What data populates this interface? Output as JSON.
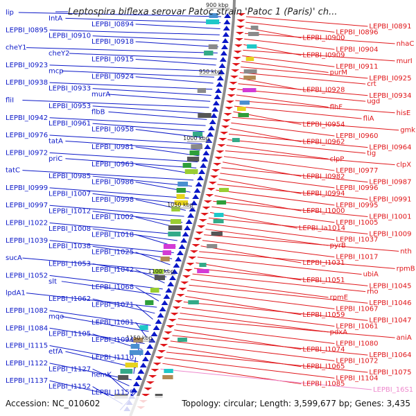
{
  "title": "Leptospira biflexa serovar Patoc strain 'Patoc 1 (Paris)' ch...",
  "footer": {
    "accession": "Accession: NC_010602",
    "topology": "Topology: circular; Length: 3,599,677 bp; Genes: 3,435"
  },
  "colors": {
    "left_strand": "#0b18c8",
    "right_strand": "#e0161a",
    "rna": "#ee88cc",
    "backbone": "#888888"
  },
  "kbp_marks": [
    "900 kbp",
    "950 kbp",
    "1000 kbp",
    "1050 kbp",
    "1100 kbp",
    "1150 kbp"
  ],
  "left_labels": [
    "lip",
    "IntA",
    "LEPBI_I0894",
    "LEPBI_I0895",
    "LEPBI_I0910",
    "LEPBI_I0918",
    "cheY1",
    "cheY2",
    "LEPBI_I0915",
    "LEPBI_I0923",
    "mcp",
    "LEPBI_I0924",
    "LEPBI_I0938",
    "LEPBI_I0933",
    "murA",
    "fliI",
    "LEPBI_I0953",
    "flbB",
    "LEPBI_I0942",
    "LEPBI_I0961",
    "LEPBI_I0958",
    "LEPBI_I0976",
    "tatA",
    "LEPBI_I0981",
    "LEPBI_I0972",
    "priC",
    "LEPBI_I0963",
    "tatC",
    "LEPBI_I0985",
    "LEPBI_I0986",
    "LEPBI_I0999",
    "LEPBI_I1007",
    "LEPBI_I0998",
    "LEPBI_I0997",
    "LEPBI_I1012",
    "LEPBI_I1002",
    "LEPBI_I1022",
    "LEPBI_I1008",
    "LEPBI_I1018",
    "LEPBI_I1039",
    "LEPBI_I1038",
    "LEPBI_I1025",
    "sucA",
    "LEPBI_I1053",
    "LEPBI_I1042",
    "LEPBI_I1052",
    "slt",
    "LEPBI_I1068",
    "lpdA1",
    "LEPBI_I1062",
    "LEPBI_I1071",
    "LEPBI_I1082",
    "mqo",
    "LEPBI_I1081",
    "LEPBI_I1084",
    "LEPBI_I1105",
    "LEPBI_I1094",
    "LEPBI_I1115",
    "etfA",
    "LEPBI_I1110",
    "LEPBI_I1122",
    "LEPBI_I1127",
    "hemK",
    "LEPBI_I1137",
    "LEPBI_I1152",
    "LEPBI_I1159"
  ],
  "right_labels": [
    "LEPBI_I0891",
    "LEPBI_I0896",
    "LEPBI_I0900",
    "nhaC",
    "LEPBI_I0904",
    "LEPBI_I0909",
    "murI",
    "LEPBI_I0911",
    "purM",
    "LEPBI_I0925",
    "crt",
    "LEPBI_I0928",
    "LEPBI_I0934",
    "ugd",
    "flhF",
    "hisE",
    "fliA",
    "LEPBI_I0954",
    "gmk",
    "LEPBI_I0960",
    "LEPBI_I0962",
    "LEPBI_I0964",
    "tig",
    "clpP",
    "clpX",
    "LEPBI_I0977",
    "LEPBI_I0982",
    "LEPBI_I0987",
    "LEPBI_I0996",
    "LEPBI_I0994",
    "LEPBI_I0991",
    "LEPBI_I0995",
    "LEPBI_I1000",
    "LEPBI_I1001",
    "LEPBI_I1005",
    "LEPBI_Ia1014",
    "LEPBI_I1009",
    "LEPBI_I1037",
    "pyrB",
    "nth",
    "LEPBI_I1017",
    "LEPBI_I1031",
    "rpmB",
    "ubiA",
    "LEPBI_I1051",
    "LEPBI_I1045",
    "rho",
    "rpmE",
    "LEPBI_I1046",
    "LEPBI_I1067",
    "LEPBI_I1059",
    "LEPBI_I1047",
    "LEPBI_I1061",
    "pdxA",
    "aniA",
    "LEPBI_I1080",
    "LEPBI_I1074",
    "LEPBI_I1064",
    "LEPBI_I1072",
    "LEPBI_I1065",
    "LEPBI_I1075",
    "LEPBI_I1104",
    "LEPBI_I1085",
    "LEPBI_16S1"
  ]
}
